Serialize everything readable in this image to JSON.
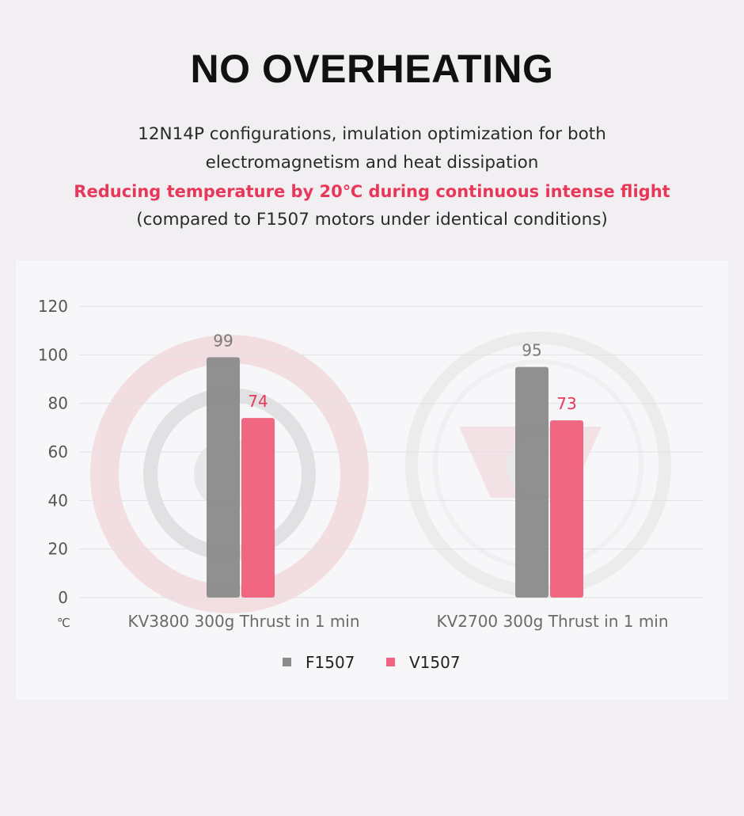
{
  "header": {
    "title": "NO OVERHEATING",
    "line1": "12N14P configurations, imulation optimization for both",
    "line2": "electromagnetism and heat dissipation",
    "highlight": "Reducing temperature by 20℃ during continuous intense flight",
    "note": "(compared to F1507 motors under identical conditions)"
  },
  "chart_data": {
    "type": "bar",
    "categories": [
      "KV3800 300g Thrust in 1 min",
      "KV2700 300g Thrust in 1 min"
    ],
    "series": [
      {
        "name": "F1507",
        "values": [
          99,
          95
        ],
        "color": "#8c8c8c",
        "label_color": "#7a7a7a"
      },
      {
        "name": "V1507",
        "values": [
          74,
          73
        ],
        "color": "#f0627d",
        "label_color": "#e8385a"
      }
    ],
    "y_ticks": [
      0,
      20,
      40,
      60,
      80,
      100,
      120
    ],
    "ylim": [
      0,
      120
    ],
    "y_unit": "℃",
    "grid": true,
    "legend_position": "bottom-center",
    "gridline_color": "#e2e0e4"
  }
}
